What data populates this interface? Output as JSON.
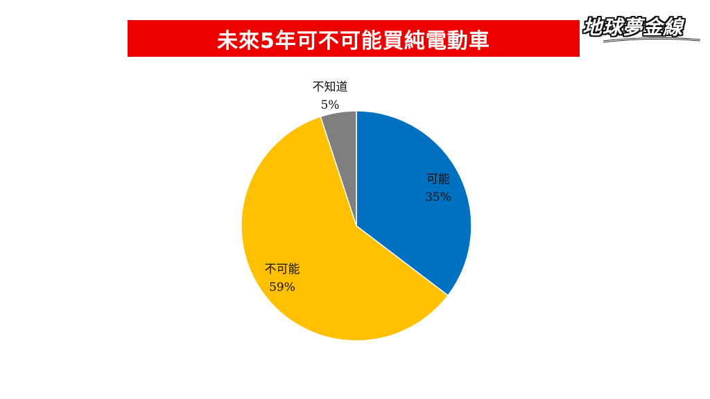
{
  "title": "未來5年可不可能買純電動車",
  "logo": {
    "text": "地球夢金線"
  },
  "colors": {
    "title_bar": "#ee0000",
    "title_text": "#ffffff"
  },
  "chart_data": {
    "type": "pie",
    "title": "未來5年可不可能買純電動車",
    "slices": [
      {
        "label": "可能",
        "value": 35,
        "value_label": "35%",
        "color": "#0070c0"
      },
      {
        "label": "不可能",
        "value": 59,
        "value_label": "59%",
        "color": "#ffc000"
      },
      {
        "label": "不知道",
        "value": 5,
        "value_label": "5%",
        "color": "#7f7f7f"
      }
    ],
    "start": "12 o'clock",
    "direction": "clockwise",
    "legend": "none"
  }
}
